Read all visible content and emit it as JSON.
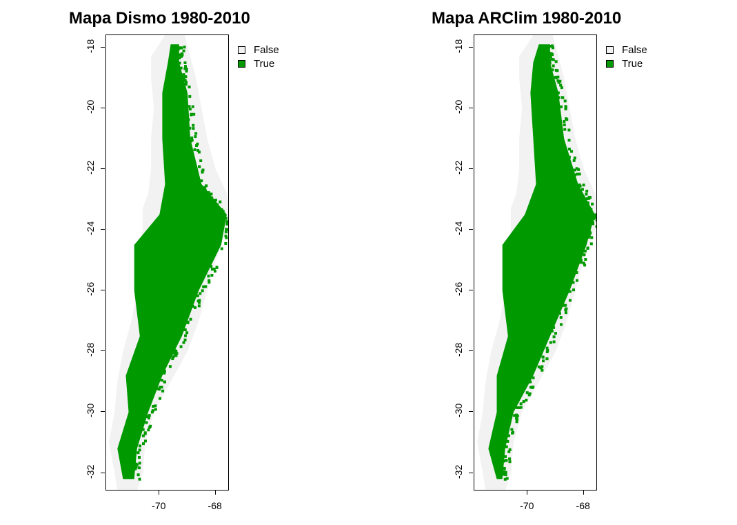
{
  "colors": {
    "false_fill": "#f2f2f2",
    "true_fill": "#009900",
    "frame": "#000000"
  },
  "legend": {
    "items": [
      {
        "label": "False",
        "color": "#f2f2f2"
      },
      {
        "label": "True",
        "color": "#009900"
      }
    ]
  },
  "panels": [
    {
      "title": "Mapa Dismo 1980-2010",
      "yticks": [
        "-18",
        "-20",
        "-22",
        "-24",
        "-26",
        "-28",
        "-30",
        "-32"
      ],
      "xticks": [
        "-70",
        "-68"
      ]
    },
    {
      "title": "Mapa ARClim 1980-2010",
      "yticks": [
        "-18",
        "-20",
        "-22",
        "-24",
        "-26",
        "-28",
        "-30",
        "-32"
      ],
      "xticks": [
        "-70",
        "-68"
      ]
    }
  ],
  "chart_data": [
    {
      "type": "heatmap",
      "title": "Mapa Dismo 1980-2010",
      "categories": [
        "False",
        "True"
      ],
      "xlim": [
        -71.9,
        -67.5
      ],
      "ylim": [
        -32.6,
        -17.6
      ],
      "xticks": [
        -70,
        -68
      ],
      "yticks": [
        -18,
        -20,
        -22,
        -24,
        -26,
        -28,
        -30,
        -32
      ],
      "legend": "top-right",
      "true_extent": {
        "lat": [
          -17.9,
          -18.5,
          -19.5,
          -21.0,
          -22.5,
          -23.5,
          -24.5,
          -26.0,
          -27.5,
          -28.8,
          -30.0,
          -31.2,
          -32.2
        ],
        "lon_west": [
          -69.6,
          -69.7,
          -69.9,
          -69.9,
          -69.8,
          -70.0,
          -70.9,
          -70.9,
          -70.7,
          -71.2,
          -71.1,
          -71.5,
          -71.3
        ],
        "lon_east": [
          -69.3,
          -69.3,
          -69.0,
          -68.9,
          -68.5,
          -67.6,
          -67.8,
          -68.6,
          -69.2,
          -69.9,
          -70.4,
          -70.8,
          -70.9
        ]
      }
    },
    {
      "type": "heatmap",
      "title": "Mapa ARClim 1980-2010",
      "categories": [
        "False",
        "True"
      ],
      "xlim": [
        -71.9,
        -67.5
      ],
      "ylim": [
        -32.6,
        -17.6
      ],
      "xticks": [
        -70,
        -68
      ],
      "yticks": [
        -18,
        -20,
        -22,
        -24,
        -26,
        -28,
        -30,
        -32
      ],
      "legend": "top-right",
      "true_extent": {
        "lat": [
          -17.9,
          -18.5,
          -19.5,
          -21.0,
          -22.5,
          -23.5,
          -24.5,
          -26.0,
          -27.5,
          -28.8,
          -30.0,
          -31.2,
          -32.2
        ],
        "lon_west": [
          -69.6,
          -69.8,
          -69.9,
          -69.8,
          -69.7,
          -70.1,
          -70.9,
          -70.9,
          -70.7,
          -71.1,
          -71.1,
          -71.4,
          -71.1
        ],
        "lon_east": [
          -69.2,
          -69.2,
          -68.9,
          -68.7,
          -68.2,
          -67.6,
          -67.9,
          -68.5,
          -69.2,
          -69.8,
          -70.5,
          -70.8,
          -70.9
        ]
      }
    }
  ]
}
